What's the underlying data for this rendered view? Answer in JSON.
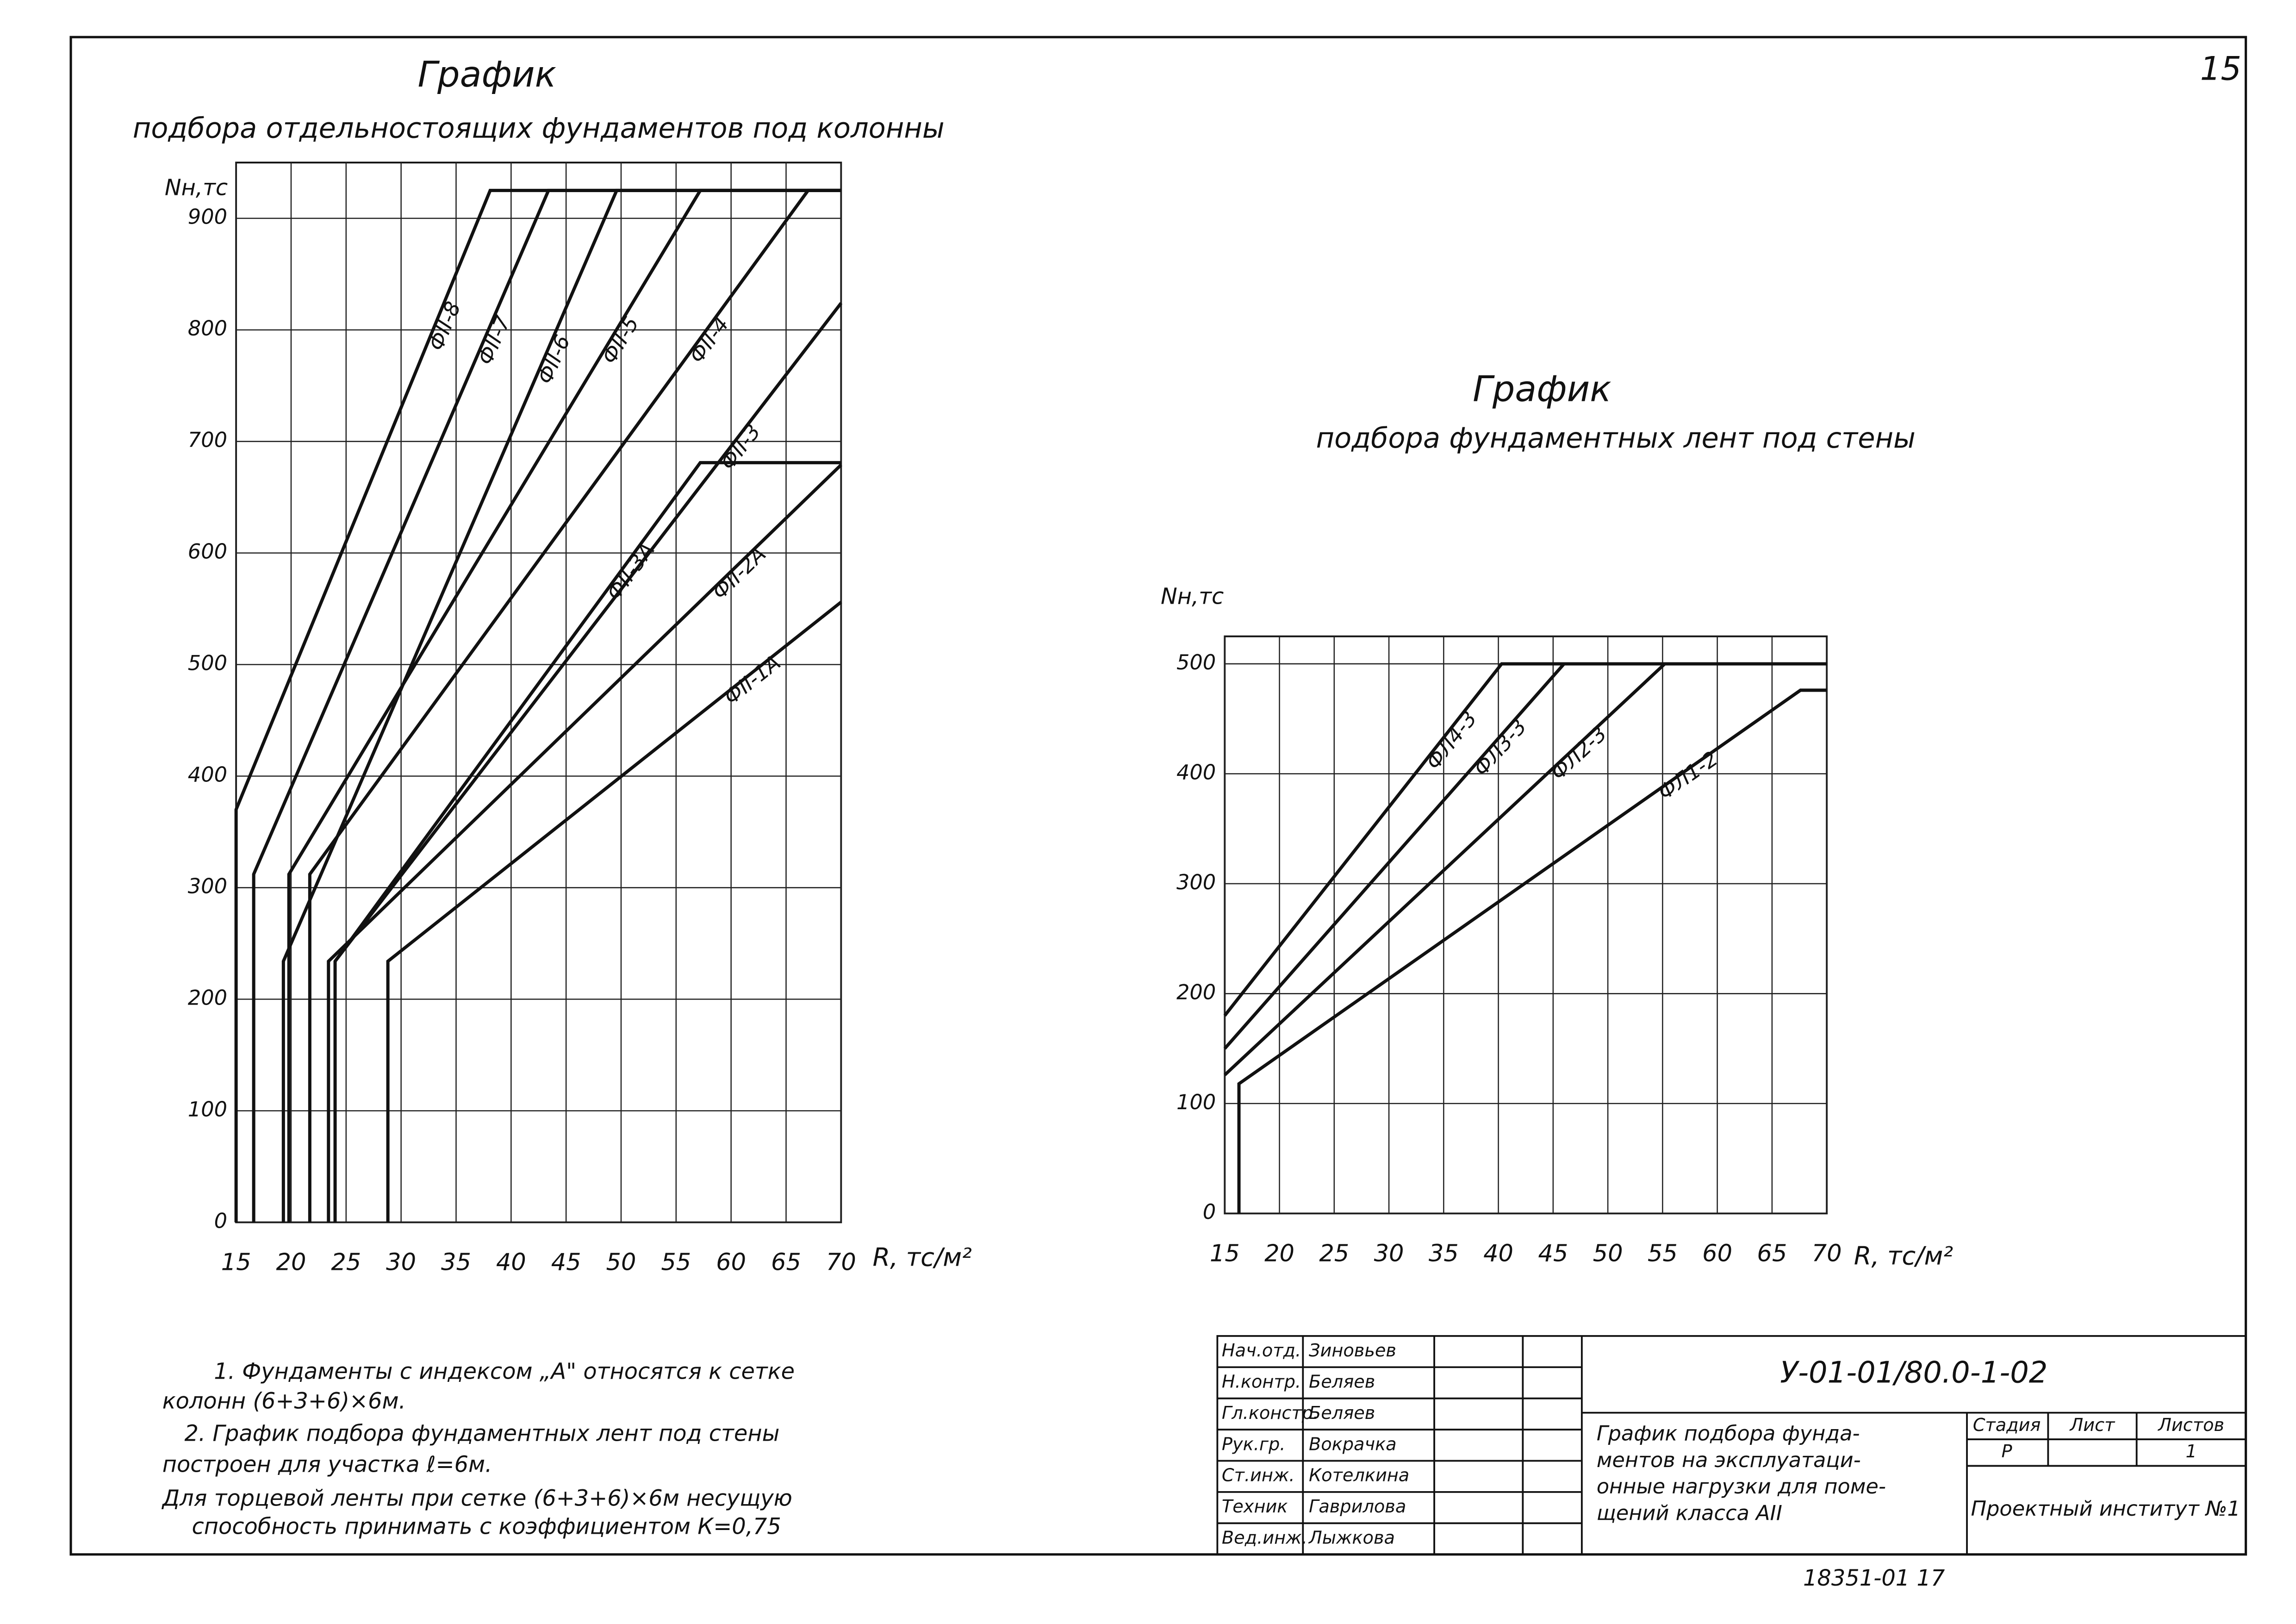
{
  "chart_data": [
    {
      "type": "line",
      "title": "График",
      "subtitle": "подбора отдельностоящих фундаментов под колонны",
      "y_label": "Nн,тс",
      "x_label": "R, тс/м²",
      "xlim": [
        15,
        70
      ],
      "ylim": [
        0,
        950
      ],
      "xticks": [
        15,
        20,
        25,
        30,
        35,
        40,
        45,
        50,
        55,
        60,
        65,
        70
      ],
      "yticks": [
        0,
        100,
        200,
        300,
        400,
        500,
        600,
        700,
        800,
        900
      ],
      "grid": true,
      "series": [
        {
          "name": "ФII-8",
          "color": "#111",
          "x": [
            15,
            15,
            38.1,
            70
          ],
          "values": [
            0,
            370,
            925,
            925
          ]
        },
        {
          "name": "ФII-7",
          "color": "#111",
          "x": [
            16.6,
            16.6,
            43.4,
            70
          ],
          "values": [
            0,
            312,
            925,
            925
          ]
        },
        {
          "name": "ФII-6",
          "color": "#111",
          "x": [
            19.3,
            19.3,
            49.6,
            70
          ],
          "values": [
            0,
            234,
            925,
            925
          ]
        },
        {
          "name": "ФII-5",
          "color": "#111",
          "x": [
            19.8,
            19.8,
            57.2,
            70
          ],
          "values": [
            0,
            312,
            925,
            925
          ]
        },
        {
          "name": "ФII-4",
          "color": "#111",
          "x": [
            21.7,
            21.7,
            67,
            70
          ],
          "values": [
            0,
            312,
            925,
            925
          ]
        },
        {
          "name": "ФII-3",
          "color": "#111",
          "x": [
            24,
            70
          ],
          "values": [
            234,
            824
          ]
        },
        {
          "name": "ФII-3A",
          "color": "#111",
          "x": [
            24,
            24,
            57.2,
            70
          ],
          "values": [
            0,
            234,
            681,
            681
          ]
        },
        {
          "name": "ФII-2A",
          "color": "#111",
          "x": [
            23.4,
            23.4,
            70
          ],
          "values": [
            0,
            234,
            679
          ]
        },
        {
          "name": "ФII-1A",
          "color": "#111",
          "x": [
            28.8,
            28.8,
            70
          ],
          "values": [
            0,
            234,
            556
          ]
        }
      ]
    },
    {
      "type": "line",
      "title": "График",
      "subtitle": "подбора фундаментных лент под стены",
      "y_label": "Nн,тс",
      "x_label": "R, тс/м²",
      "xlim": [
        15,
        70
      ],
      "ylim": [
        0,
        525
      ],
      "xticks": [
        15,
        20,
        25,
        30,
        35,
        40,
        45,
        50,
        55,
        60,
        65,
        70
      ],
      "yticks": [
        0,
        100,
        200,
        300,
        400,
        500
      ],
      "grid": true,
      "series": [
        {
          "name": "ФЛ4-3",
          "color": "#111",
          "x": [
            15,
            40.3,
            70
          ],
          "values": [
            180,
            500,
            500
          ]
        },
        {
          "name": "ФЛ3-3",
          "color": "#111",
          "x": [
            15,
            46,
            70
          ],
          "values": [
            150,
            500,
            500
          ]
        },
        {
          "name": "ФЛ2-3",
          "color": "#111",
          "x": [
            15,
            55.2,
            70
          ],
          "values": [
            126,
            500,
            500
          ]
        },
        {
          "name": "ФЛ1-2",
          "color": "#111",
          "x": [
            16.3,
            16.3,
            67.6,
            70
          ],
          "values": [
            0,
            118,
            476,
            476
          ]
        }
      ]
    }
  ],
  "notes": [
    "1. Фундаменты с индексом „А\" относятся к сетке",
    "колонн (6+3+6)×6м.",
    "2. График подбора фундаментных лент под стены",
    "построен для участка ℓ=6м.",
    "Для торцевой ленты при сетке (6+3+6)×6м несущую",
    "способность принимать с коэффициентом К=0,75"
  ],
  "sheet_number": "15",
  "bottom_code": "18351-01 17",
  "title_block": {
    "code": "У-01-01/80.0-1-02",
    "rows": [
      [
        "Нач.отд.",
        "Зиновьев"
      ],
      [
        "Н.контр.",
        "Беляев"
      ],
      [
        "Гл.констр.",
        "Беляев"
      ],
      [
        "Рук.гр.",
        "Вокрачка"
      ],
      [
        "Ст.инж.",
        "Котелкина"
      ],
      [
        "Техник",
        "Гаврилова"
      ],
      [
        "Вед.инж.",
        "Лыжкова"
      ]
    ],
    "description": [
      "График подбора фунда-",
      "ментов на эксплуатаци-",
      "онные нагрузки для поме-",
      "щений класса АII"
    ],
    "headers": [
      "Стадия",
      "Лист",
      "Листов"
    ],
    "stage": "Р",
    "sheets": "1",
    "organization": "Проектный институт №1"
  }
}
